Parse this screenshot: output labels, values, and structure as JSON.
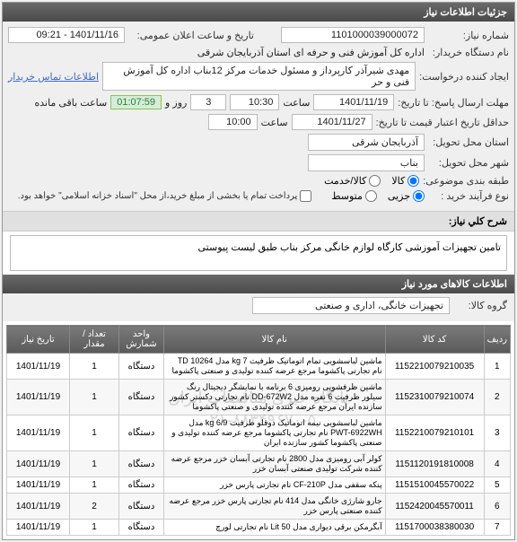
{
  "panel1_title": "جزئیات اطلاعات نیاز",
  "niaz_no_label": "شماره نیاز:",
  "niaz_no": "1101000039000072",
  "announce_label": "تاریخ و ساعت اعلان عمومی:",
  "announce_value": "1401/11/16 - 09:21",
  "buyer_label": "نام دستگاه خریدار:",
  "buyer_value": "اداره کل آموزش فنی و حرفه ای استان آذربایجان شرقی",
  "requester_label": "ایجاد کننده درخواست:",
  "requester_value": "مهدی شیرآذر کارپرداز و مسئول خدمات مرکز 12بناب اداره کل آموزش فنی و حر",
  "contact_link": "اطلاعات تماس خریدار",
  "deadline_label": "مهلت ارسال پاسخ: تا تاریخ:",
  "deadline_date": "1401/11/19",
  "time_label": "ساعت",
  "deadline_time": "10:30",
  "days_val": "3",
  "days_label": "روز و",
  "countdown": "01:07:59",
  "remain_label": "ساعت باقی مانده",
  "validity_label": "حداقل تاریخ اعتبار قیمت تا تاریخ:",
  "validity_date": "1401/11/27",
  "validity_time": "10:00",
  "province_label": "استان محل تحویل:",
  "province_value": "آذربایجان شرقی",
  "city_label": "شهر محل تحویل:",
  "city_value": "بناب",
  "category_label": "طبقه بندی موضوعی:",
  "cat_goods": "کالا",
  "cat_service": "کالا/خدمت",
  "buy_type_label": "نوع فرآیند خرید :",
  "buy_small": "جزیی",
  "buy_medium": "متوسط",
  "payment_note": "پرداخت تمام یا بخشی از مبلغ خرید،از محل \"اسناد خزانه اسلامی\" خواهد بود.",
  "desc_label": "شرح کلي نياز:",
  "desc_value": "تامین تجهیزات آموزشی کارگاه لوازم خانگی مرکز بناب طبق لیست پیوستی",
  "panel2_title": "اطلاعات کالاهای مورد نیاز",
  "group_label": "گروه کالا:",
  "group_value": "تجهیزات خانگی، اداری و صنعتی",
  "th_idx": "ردیف",
  "th_code": "کد کالا",
  "th_name": "نام کالا",
  "th_unit": "واحد شمارش",
  "th_qty": "تعداد / مقدار",
  "th_date": "تاریخ نیاز",
  "rows": [
    {
      "idx": "1",
      "code": "1152210079210035",
      "name": "ماشین لباسشویی تمام اتوماتیک ظرفیت kg 7 مدل 10264 TD نام تجارتی پاکشوما مرجع عرضه کننده تولیدی و صنعتی پاکشوما",
      "unit": "دستگاه",
      "qty": "1",
      "date": "1401/11/19"
    },
    {
      "idx": "2",
      "code": "1152310079210074",
      "name": "ماشین ظرفشویی رومیزی 6 برنامه با نمایشگر دیجیتال رنگ سیلور ظرفیت 6 نفره مدل DD-672W2 نام تجارتی دکستر کشور سازنده ایران مرجع عرضه کننده تولیدی و صنعتی پاکشوما",
      "unit": "دستگاه",
      "qty": "1",
      "date": "1401/11/19"
    },
    {
      "idx": "3",
      "code": "1152210079210101",
      "name": "ماشین لباسشویی نیمه اتوماتیک دوقلو ظرفیت kg 6/9 مدل PWT-6922WH نام تجارتی پاکشوما مرجع عرضه کننده تولیدی و صنعتی پاکشوما کشور سازنده ایران",
      "unit": "دستگاه",
      "qty": "1",
      "date": "1401/11/19"
    },
    {
      "idx": "4",
      "code": "1151120191810008",
      "name": "کولر آبی رومیزی مدل 2800 نام تجارتی آبسان خزر مرجع عرضه کننده شرکت تولیدی صنعتی آبسان خزر",
      "unit": "دستگاه",
      "qty": "1",
      "date": "1401/11/19"
    },
    {
      "idx": "5",
      "code": "1151510045570022",
      "name": "پنکه سقفی مدل CF-210P نام تجارتی پارس خزر",
      "unit": "دستگاه",
      "qty": "1",
      "date": "1401/11/19"
    },
    {
      "idx": "6",
      "code": "1152420045570011",
      "name": "جارو شارژی خانگی مدل 414 نام تجارتی پارس خزر مرجع عرضه کننده صنعتی پارس خزر",
      "unit": "دستگاه",
      "qty": "2",
      "date": "1401/11/19"
    },
    {
      "idx": "7",
      "code": "1151700038380030",
      "name": "آبگرمکن برقی دیواری مدل Lit 50 نام تجارتی لورچ",
      "unit": "دستگاه",
      "qty": "1",
      "date": "1401/11/19"
    }
  ],
  "watermark_line1": "پایگاه خبری مناقصات ایران",
  "watermark_line2": "۰۲۱-۸۸۳۴۹۶۷۰-۵"
}
